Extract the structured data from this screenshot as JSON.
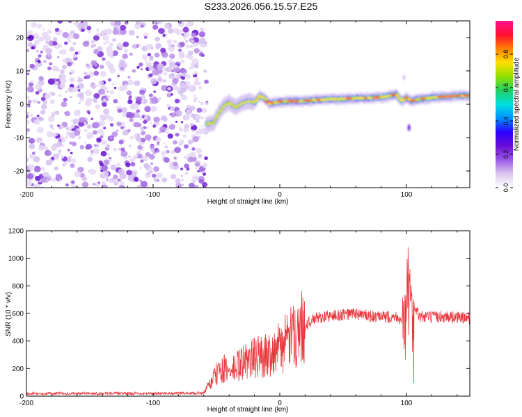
{
  "title": "S233.2026.056.15.57.E25",
  "chart_data": [
    {
      "type": "heatmap",
      "xlabel": "Height of straight line (km)",
      "ylabel": "Frequency (Hz)",
      "xlim": [
        -200,
        150
      ],
      "ylim": [
        -25,
        25
      ],
      "xticks": [
        -200,
        -100,
        0,
        100
      ],
      "yticks": [
        -20,
        -10,
        0,
        10,
        20
      ],
      "colorbar": {
        "label": "Normalized spectral amplitude",
        "range": [
          0,
          1
        ],
        "ticks": [
          "0.0",
          "0.2",
          "0.4",
          "0.6",
          "0.8"
        ],
        "colors": [
          "#ffffff",
          "#dcc8f0",
          "#9b59e6",
          "#6a0dd6",
          "#2a00ff",
          "#0090ff",
          "#00e0e0",
          "#20d060",
          "#90e000",
          "#ffe000",
          "#ff8000",
          "#ff1030",
          "#ff1090"
        ]
      },
      "noise_region_x": [
        -200,
        -58
      ],
      "signal_trace": [
        {
          "x": -58,
          "f": -6.0
        },
        {
          "x": -52,
          "f": -5.5
        },
        {
          "x": -48,
          "f": -2.5
        },
        {
          "x": -44,
          "f": -0.5
        },
        {
          "x": -40,
          "f": 0.5
        },
        {
          "x": -35,
          "f": -1.0
        },
        {
          "x": -30,
          "f": 0.3
        },
        {
          "x": -25,
          "f": 1.0
        },
        {
          "x": -20,
          "f": 0.5
        },
        {
          "x": -16,
          "f": 2.5
        },
        {
          "x": -12,
          "f": 1.8
        },
        {
          "x": -8,
          "f": 0.2
        },
        {
          "x": 0,
          "f": 0.8
        },
        {
          "x": 10,
          "f": 0.9
        },
        {
          "x": 20,
          "f": 1.0
        },
        {
          "x": 30,
          "f": 1.3
        },
        {
          "x": 40,
          "f": 1.5
        },
        {
          "x": 50,
          "f": 1.6
        },
        {
          "x": 60,
          "f": 1.8
        },
        {
          "x": 70,
          "f": 1.9
        },
        {
          "x": 80,
          "f": 2.1
        },
        {
          "x": 88,
          "f": 2.6
        },
        {
          "x": 92,
          "f": 3.0
        },
        {
          "x": 96,
          "f": 1.0
        },
        {
          "x": 100,
          "f": 2.0
        },
        {
          "x": 104,
          "f": 1.0
        },
        {
          "x": 110,
          "f": 1.5
        },
        {
          "x": 120,
          "f": 2.0
        },
        {
          "x": 130,
          "f": 2.3
        },
        {
          "x": 140,
          "f": 2.5
        },
        {
          "x": 150,
          "f": 2.6
        }
      ]
    },
    {
      "type": "line",
      "xlabel": "Height of straight line (km)",
      "ylabel": "SNR (10 * v/v)",
      "xlim": [
        -200,
        150
      ],
      "ylim": [
        0,
        1200
      ],
      "xticks": [
        -200,
        -100,
        0,
        100
      ],
      "yticks": [
        0,
        200,
        400,
        600,
        800,
        1000,
        1200
      ],
      "color": "#e8383d",
      "series": [
        {
          "name": "SNR",
          "x": [
            -200,
            -150,
            -100,
            -60,
            -50,
            -45,
            -40,
            -30,
            -20,
            -10,
            0,
            10,
            20,
            30,
            40,
            50,
            60,
            70,
            80,
            90,
            98,
            101,
            103,
            105,
            110,
            120,
            130,
            140,
            150
          ],
          "values": [
            18,
            20,
            20,
            22,
            160,
            200,
            170,
            240,
            280,
            300,
            350,
            430,
            520,
            570,
            580,
            590,
            600,
            580,
            570,
            580,
            560,
            900,
            150,
            700,
            580,
            570,
            580,
            570,
            565
          ]
        }
      ]
    }
  ]
}
